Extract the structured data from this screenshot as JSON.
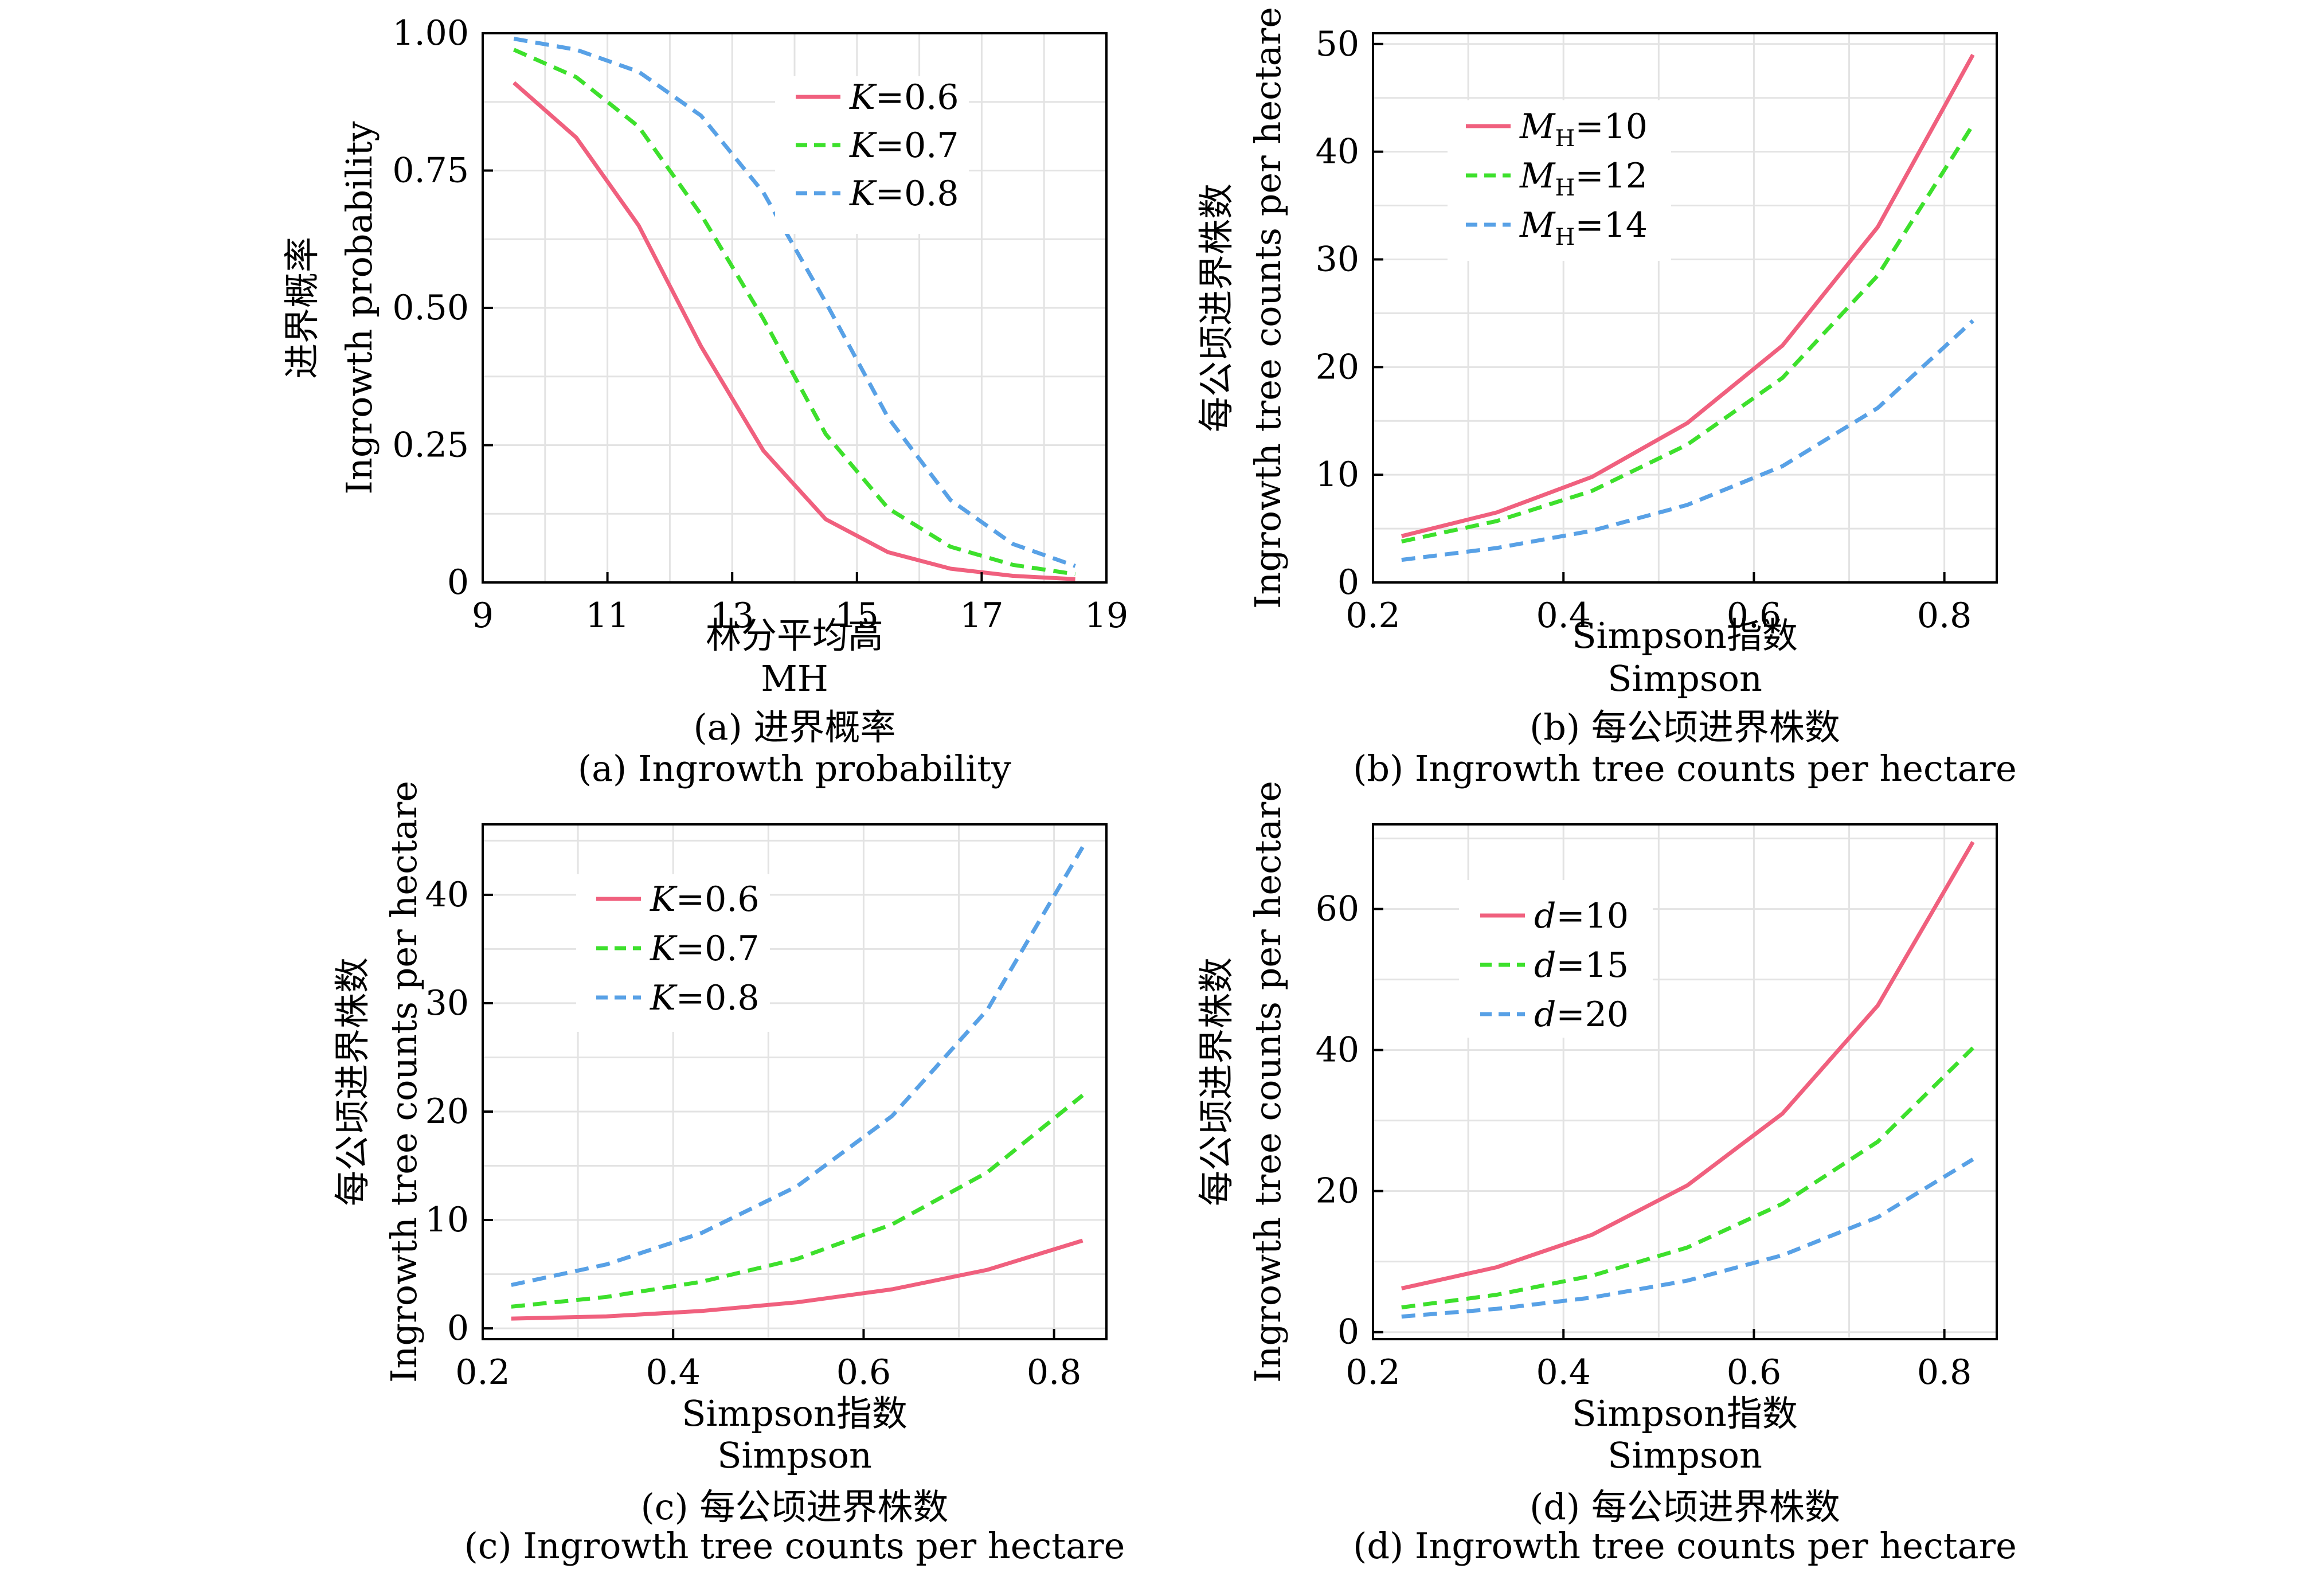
{
  "colors": {
    "red": "#f0607e",
    "green": "#3de02c",
    "blue": "#58a1e6",
    "grid": "#e3e3e3",
    "axis": "#000000"
  },
  "chart_data": [
    {
      "id": "a",
      "type": "line",
      "ylabel_cn": "进界概率",
      "ylabel_en": "Ingrowth probability",
      "xlabel_cn": "林分平均高",
      "xlabel_en": "MH",
      "caption_cn": "(a) 进界概率",
      "caption_en": "(a) Ingrowth probability",
      "xlim": [
        9,
        19
      ],
      "ylim": [
        0,
        1
      ],
      "xticks": [
        9,
        11,
        13,
        15,
        17,
        19
      ],
      "xtick_labels": [
        "9",
        "11",
        "13",
        "15",
        "17",
        "19"
      ],
      "yticks": [
        0,
        0.25,
        0.5,
        0.75,
        1.0
      ],
      "ytick_labels": [
        "0",
        "0.25",
        "0.50",
        "0.75",
        "1.00"
      ],
      "grid": true,
      "legend_position": "top-right",
      "series": [
        {
          "var": "K",
          "sub": "",
          "value": "=0.6",
          "color": "red",
          "dash": false,
          "x": [
            9.5,
            10.5,
            11.5,
            12.5,
            13.5,
            14.5,
            15.5,
            16.5,
            17.5,
            18.5
          ],
          "y": [
            0.91,
            0.81,
            0.65,
            0.43,
            0.24,
            0.115,
            0.055,
            0.025,
            0.012,
            0.006
          ]
        },
        {
          "var": "K",
          "sub": "",
          "value": "=0.7",
          "color": "green",
          "dash": true,
          "x": [
            9.5,
            10.5,
            11.5,
            12.5,
            13.5,
            14.5,
            15.5,
            16.5,
            17.5,
            18.5
          ],
          "y": [
            0.97,
            0.92,
            0.83,
            0.67,
            0.48,
            0.27,
            0.135,
            0.065,
            0.032,
            0.015
          ]
        },
        {
          "var": "K",
          "sub": "",
          "value": "=0.8",
          "color": "blue",
          "dash": true,
          "x": [
            9.5,
            10.5,
            11.5,
            12.5,
            13.5,
            14.5,
            15.5,
            16.5,
            17.5,
            18.5
          ],
          "y": [
            0.99,
            0.97,
            0.93,
            0.85,
            0.71,
            0.51,
            0.3,
            0.15,
            0.07,
            0.03
          ]
        }
      ]
    },
    {
      "id": "b",
      "type": "line",
      "ylabel_cn": "每公顷进界株数",
      "ylabel_en": "Ingrowth tree counts per hectare",
      "xlabel_cn": "Simpson指数",
      "xlabel_en": "Simpson",
      "caption_cn": "(b) 每公顷进界株数",
      "caption_en": "(b) Ingrowth tree counts per hectare",
      "xlim": [
        0.2,
        0.855
      ],
      "ylim": [
        0,
        51
      ],
      "xticks": [
        0.2,
        0.4,
        0.6,
        0.8
      ],
      "xtick_labels": [
        "0.2",
        "0.4",
        "0.6",
        "0.8"
      ],
      "yticks": [
        0,
        10,
        20,
        30,
        40,
        50
      ],
      "ytick_labels": [
        "0",
        "10",
        "20",
        "30",
        "40",
        "50"
      ],
      "grid": true,
      "legend_position": "top-left",
      "series": [
        {
          "var": "M",
          "sub": "H",
          "value": "=10",
          "color": "red",
          "dash": false,
          "x": [
            0.23,
            0.33,
            0.43,
            0.53,
            0.63,
            0.73,
            0.83
          ],
          "y": [
            4.3,
            6.5,
            9.8,
            14.8,
            22,
            33,
            49
          ]
        },
        {
          "var": "M",
          "sub": "H",
          "value": "=12",
          "color": "green",
          "dash": true,
          "x": [
            0.23,
            0.33,
            0.43,
            0.53,
            0.63,
            0.73,
            0.83
          ],
          "y": [
            3.8,
            5.7,
            8.5,
            12.8,
            19,
            28.5,
            42.5
          ]
        },
        {
          "var": "M",
          "sub": "H",
          "value": "=14",
          "color": "blue",
          "dash": true,
          "x": [
            0.23,
            0.33,
            0.43,
            0.53,
            0.63,
            0.73,
            0.83
          ],
          "y": [
            2.1,
            3.2,
            4.8,
            7.2,
            10.8,
            16.2,
            24.3
          ]
        }
      ]
    },
    {
      "id": "c",
      "type": "line",
      "ylabel_cn": "每公顷进界株数",
      "ylabel_en": "Ingrowth tree counts per hectare",
      "xlabel_cn": "Simpson指数",
      "xlabel_en": "Simpson",
      "caption_cn": "(c) 每公顷进界株数",
      "caption_en": "(c) Ingrowth tree counts per hectare",
      "xlim": [
        0.2,
        0.855
      ],
      "ylim": [
        -1,
        46.5
      ],
      "xticks": [
        0.2,
        0.4,
        0.6,
        0.8
      ],
      "xtick_labels": [
        "0.2",
        "0.4",
        "0.6",
        "0.8"
      ],
      "yticks": [
        0,
        10,
        20,
        30,
        40
      ],
      "ytick_labels": [
        "0",
        "10",
        "20",
        "30",
        "40"
      ],
      "grid": true,
      "legend_position": "top-left",
      "series": [
        {
          "var": "K",
          "sub": "",
          "value": "=0.6",
          "color": "red",
          "dash": false,
          "x": [
            0.23,
            0.33,
            0.43,
            0.53,
            0.63,
            0.73,
            0.83
          ],
          "y": [
            0.9,
            1.1,
            1.6,
            2.4,
            3.6,
            5.4,
            8.1
          ]
        },
        {
          "var": "K",
          "sub": "",
          "value": "=0.7",
          "color": "green",
          "dash": true,
          "x": [
            0.23,
            0.33,
            0.43,
            0.53,
            0.63,
            0.73,
            0.83
          ],
          "y": [
            2.0,
            2.9,
            4.3,
            6.4,
            9.6,
            14.4,
            21.5
          ]
        },
        {
          "var": "K",
          "sub": "",
          "value": "=0.8",
          "color": "blue",
          "dash": true,
          "x": [
            0.23,
            0.33,
            0.43,
            0.53,
            0.63,
            0.73,
            0.83
          ],
          "y": [
            4.0,
            5.9,
            8.8,
            13.1,
            19.6,
            29.4,
            44.4
          ]
        }
      ]
    },
    {
      "id": "d",
      "type": "line",
      "ylabel_cn": "每公顷进界株数",
      "ylabel_en": "Ingrowth tree counts per hectare",
      "xlabel_cn": "Simpson指数",
      "xlabel_en": "Simpson",
      "caption_cn": "(d) 每公顷进界株数",
      "caption_en": "(d) Ingrowth tree counts per hectare",
      "xlim": [
        0.2,
        0.855
      ],
      "ylim": [
        -1,
        72
      ],
      "xticks": [
        0.2,
        0.4,
        0.6,
        0.8
      ],
      "xtick_labels": [
        "0.2",
        "0.4",
        "0.6",
        "0.8"
      ],
      "yticks": [
        0,
        20,
        40,
        60
      ],
      "ytick_labels": [
        "0",
        "20",
        "40",
        "60"
      ],
      "grid": true,
      "legend_position": "top-left",
      "series": [
        {
          "var": "d",
          "sub": "",
          "value": "=10",
          "color": "red",
          "dash": false,
          "x": [
            0.23,
            0.33,
            0.43,
            0.53,
            0.63,
            0.73,
            0.83
          ],
          "y": [
            6.2,
            9.2,
            13.8,
            20.8,
            31,
            46.3,
            69.5
          ]
        },
        {
          "var": "d",
          "sub": "",
          "value": "=15",
          "color": "green",
          "dash": true,
          "x": [
            0.23,
            0.33,
            0.43,
            0.53,
            0.63,
            0.73,
            0.83
          ],
          "y": [
            3.5,
            5.3,
            8.0,
            12.0,
            18.2,
            27.0,
            40.3
          ]
        },
        {
          "var": "d",
          "sub": "",
          "value": "=20",
          "color": "blue",
          "dash": true,
          "x": [
            0.23,
            0.33,
            0.43,
            0.53,
            0.63,
            0.73,
            0.83
          ],
          "y": [
            2.2,
            3.3,
            4.9,
            7.3,
            10.9,
            16.3,
            24.5
          ]
        }
      ]
    }
  ]
}
